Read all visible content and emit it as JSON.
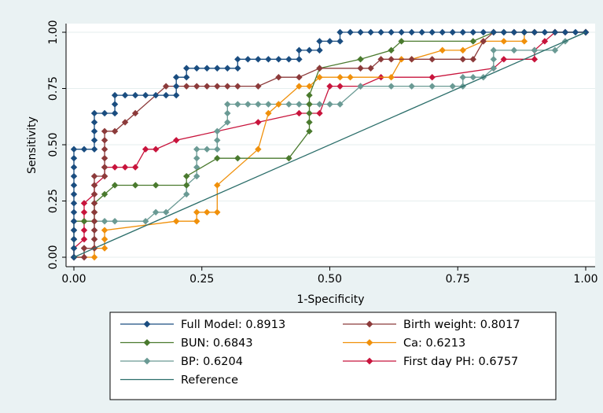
{
  "chart_data": {
    "type": "line",
    "title": "",
    "xlabel": "1-Specificity",
    "ylabel": "Sensitivity",
    "xlim": [
      0,
      1
    ],
    "ylim": [
      0,
      1
    ],
    "x_ticks": [
      "0.00",
      "0.25",
      "0.50",
      "0.75",
      "1.00"
    ],
    "y_ticks": [
      "0.00",
      "0.25",
      "0.50",
      "0.75",
      "1.00"
    ],
    "grid": true,
    "legend_position": "bottom",
    "series": [
      {
        "name": "Full Model: 0.8913",
        "color": "#1a4d80",
        "marker": "diamond",
        "points": [
          [
            0,
            0
          ],
          [
            0,
            0.04
          ],
          [
            0,
            0.08
          ],
          [
            0,
            0.12
          ],
          [
            0,
            0.16
          ],
          [
            0,
            0.2
          ],
          [
            0,
            0.24
          ],
          [
            0,
            0.28
          ],
          [
            0,
            0.32
          ],
          [
            0,
            0.36
          ],
          [
            0,
            0.4
          ],
          [
            0,
            0.44
          ],
          [
            0,
            0.48
          ],
          [
            0.02,
            0.48
          ],
          [
            0.04,
            0.48
          ],
          [
            0.04,
            0.52
          ],
          [
            0.04,
            0.56
          ],
          [
            0.04,
            0.6
          ],
          [
            0.04,
            0.64
          ],
          [
            0.06,
            0.64
          ],
          [
            0.08,
            0.64
          ],
          [
            0.08,
            0.68
          ],
          [
            0.08,
            0.72
          ],
          [
            0.1,
            0.72
          ],
          [
            0.12,
            0.72
          ],
          [
            0.14,
            0.72
          ],
          [
            0.16,
            0.72
          ],
          [
            0.18,
            0.72
          ],
          [
            0.2,
            0.72
          ],
          [
            0.2,
            0.76
          ],
          [
            0.2,
            0.8
          ],
          [
            0.22,
            0.8
          ],
          [
            0.22,
            0.84
          ],
          [
            0.24,
            0.84
          ],
          [
            0.26,
            0.84
          ],
          [
            0.28,
            0.84
          ],
          [
            0.3,
            0.84
          ],
          [
            0.32,
            0.84
          ],
          [
            0.32,
            0.88
          ],
          [
            0.34,
            0.88
          ],
          [
            0.36,
            0.88
          ],
          [
            0.38,
            0.88
          ],
          [
            0.4,
            0.88
          ],
          [
            0.42,
            0.88
          ],
          [
            0.44,
            0.88
          ],
          [
            0.44,
            0.92
          ],
          [
            0.46,
            0.92
          ],
          [
            0.48,
            0.92
          ],
          [
            0.48,
            0.96
          ],
          [
            0.5,
            0.96
          ],
          [
            0.52,
            0.96
          ],
          [
            0.52,
            1
          ],
          [
            0.54,
            1
          ],
          [
            0.56,
            1
          ],
          [
            0.58,
            1
          ],
          [
            0.6,
            1
          ],
          [
            0.62,
            1
          ],
          [
            0.64,
            1
          ],
          [
            0.66,
            1
          ],
          [
            0.68,
            1
          ],
          [
            0.7,
            1
          ],
          [
            0.72,
            1
          ],
          [
            0.74,
            1
          ],
          [
            0.76,
            1
          ],
          [
            0.78,
            1
          ],
          [
            0.8,
            1
          ],
          [
            0.82,
            1
          ],
          [
            0.84,
            1
          ],
          [
            0.86,
            1
          ],
          [
            0.88,
            1
          ],
          [
            0.9,
            1
          ],
          [
            0.92,
            1
          ],
          [
            0.94,
            1
          ],
          [
            0.96,
            1
          ],
          [
            0.98,
            1
          ],
          [
            1,
            1
          ]
        ]
      },
      {
        "name": "Birth weight: 0.8017",
        "color": "#8c3a3a",
        "marker": "diamond",
        "points": [
          [
            0,
            0
          ],
          [
            0.02,
            0
          ],
          [
            0.02,
            0.04
          ],
          [
            0.04,
            0.04
          ],
          [
            0.04,
            0.08
          ],
          [
            0.04,
            0.12
          ],
          [
            0.04,
            0.16
          ],
          [
            0.04,
            0.2
          ],
          [
            0.04,
            0.24
          ],
          [
            0.04,
            0.28
          ],
          [
            0.04,
            0.32
          ],
          [
            0.04,
            0.36
          ],
          [
            0.06,
            0.36
          ],
          [
            0.06,
            0.4
          ],
          [
            0.06,
            0.44
          ],
          [
            0.06,
            0.48
          ],
          [
            0.06,
            0.52
          ],
          [
            0.06,
            0.56
          ],
          [
            0.08,
            0.56
          ],
          [
            0.1,
            0.6
          ],
          [
            0.12,
            0.64
          ],
          [
            0.18,
            0.76
          ],
          [
            0.22,
            0.76
          ],
          [
            0.24,
            0.76
          ],
          [
            0.26,
            0.76
          ],
          [
            0.28,
            0.76
          ],
          [
            0.3,
            0.76
          ],
          [
            0.32,
            0.76
          ],
          [
            0.36,
            0.76
          ],
          [
            0.4,
            0.8
          ],
          [
            0.44,
            0.8
          ],
          [
            0.48,
            0.84
          ],
          [
            0.56,
            0.84
          ],
          [
            0.58,
            0.84
          ],
          [
            0.6,
            0.88
          ],
          [
            0.62,
            0.88
          ],
          [
            0.66,
            0.88
          ],
          [
            0.7,
            0.88
          ],
          [
            0.76,
            0.88
          ],
          [
            0.78,
            0.88
          ],
          [
            0.8,
            0.96
          ],
          [
            0.82,
            1
          ],
          [
            0.86,
            1
          ],
          [
            0.9,
            1
          ],
          [
            0.94,
            1
          ],
          [
            1,
            1
          ]
        ]
      },
      {
        "name": "BUN: 0.6843",
        "color": "#4a7a2e",
        "marker": "diamond",
        "points": [
          [
            0,
            0
          ],
          [
            0,
            0.04
          ],
          [
            0,
            0.08
          ],
          [
            0,
            0.12
          ],
          [
            0,
            0.16
          ],
          [
            0.02,
            0.16
          ],
          [
            0.04,
            0.16
          ],
          [
            0.04,
            0.2
          ],
          [
            0.04,
            0.24
          ],
          [
            0.06,
            0.28
          ],
          [
            0.08,
            0.32
          ],
          [
            0.12,
            0.32
          ],
          [
            0.16,
            0.32
          ],
          [
            0.22,
            0.32
          ],
          [
            0.22,
            0.36
          ],
          [
            0.28,
            0.44
          ],
          [
            0.32,
            0.44
          ],
          [
            0.42,
            0.44
          ],
          [
            0.46,
            0.56
          ],
          [
            0.46,
            0.6
          ],
          [
            0.46,
            0.64
          ],
          [
            0.46,
            0.68
          ],
          [
            0.46,
            0.72
          ],
          [
            0.48,
            0.84
          ],
          [
            0.56,
            0.88
          ],
          [
            0.62,
            0.92
          ],
          [
            0.64,
            0.96
          ],
          [
            0.78,
            0.96
          ],
          [
            0.82,
            1
          ],
          [
            0.84,
            1
          ],
          [
            0.88,
            1
          ],
          [
            1,
            1
          ]
        ]
      },
      {
        "name": "Ca: 0.6213",
        "color": "#f0900a",
        "marker": "diamond",
        "points": [
          [
            0,
            0
          ],
          [
            0.04,
            0
          ],
          [
            0.04,
            0.04
          ],
          [
            0.06,
            0.04
          ],
          [
            0.06,
            0.08
          ],
          [
            0.06,
            0.12
          ],
          [
            0.2,
            0.16
          ],
          [
            0.24,
            0.16
          ],
          [
            0.24,
            0.2
          ],
          [
            0.26,
            0.2
          ],
          [
            0.28,
            0.2
          ],
          [
            0.28,
            0.32
          ],
          [
            0.36,
            0.48
          ],
          [
            0.38,
            0.64
          ],
          [
            0.4,
            0.68
          ],
          [
            0.44,
            0.76
          ],
          [
            0.46,
            0.76
          ],
          [
            0.48,
            0.8
          ],
          [
            0.52,
            0.8
          ],
          [
            0.54,
            0.8
          ],
          [
            0.62,
            0.8
          ],
          [
            0.64,
            0.88
          ],
          [
            0.66,
            0.88
          ],
          [
            0.72,
            0.92
          ],
          [
            0.76,
            0.92
          ],
          [
            0.8,
            0.96
          ],
          [
            0.84,
            0.96
          ],
          [
            0.88,
            0.96
          ],
          [
            0.88,
            1
          ],
          [
            0.9,
            1
          ],
          [
            0.94,
            1
          ],
          [
            1,
            1
          ]
        ]
      },
      {
        "name": "BP: 0.6204",
        "color": "#6a9a94",
        "marker": "diamond",
        "points": [
          [
            0,
            0
          ],
          [
            0.02,
            0
          ],
          [
            0.02,
            0.04
          ],
          [
            0.04,
            0.04
          ],
          [
            0.04,
            0.08
          ],
          [
            0.04,
            0.12
          ],
          [
            0.04,
            0.16
          ],
          [
            0.06,
            0.16
          ],
          [
            0.08,
            0.16
          ],
          [
            0.14,
            0.16
          ],
          [
            0.16,
            0.2
          ],
          [
            0.18,
            0.2
          ],
          [
            0.22,
            0.28
          ],
          [
            0.22,
            0.32
          ],
          [
            0.24,
            0.36
          ],
          [
            0.24,
            0.4
          ],
          [
            0.24,
            0.44
          ],
          [
            0.24,
            0.48
          ],
          [
            0.26,
            0.48
          ],
          [
            0.28,
            0.48
          ],
          [
            0.28,
            0.52
          ],
          [
            0.28,
            0.56
          ],
          [
            0.3,
            0.6
          ],
          [
            0.3,
            0.64
          ],
          [
            0.3,
            0.68
          ],
          [
            0.32,
            0.68
          ],
          [
            0.34,
            0.68
          ],
          [
            0.36,
            0.68
          ],
          [
            0.38,
            0.68
          ],
          [
            0.4,
            0.68
          ],
          [
            0.42,
            0.68
          ],
          [
            0.44,
            0.68
          ],
          [
            0.46,
            0.68
          ],
          [
            0.48,
            0.68
          ],
          [
            0.5,
            0.68
          ],
          [
            0.52,
            0.68
          ],
          [
            0.56,
            0.76
          ],
          [
            0.62,
            0.76
          ],
          [
            0.66,
            0.76
          ],
          [
            0.7,
            0.76
          ],
          [
            0.74,
            0.76
          ],
          [
            0.76,
            0.76
          ],
          [
            0.76,
            0.8
          ],
          [
            0.78,
            0.8
          ],
          [
            0.8,
            0.8
          ],
          [
            0.82,
            0.84
          ],
          [
            0.82,
            0.88
          ],
          [
            0.82,
            0.92
          ],
          [
            0.86,
            0.92
          ],
          [
            0.9,
            0.92
          ],
          [
            0.94,
            0.92
          ],
          [
            0.96,
            0.96
          ],
          [
            1,
            1
          ]
        ]
      },
      {
        "name": "First day PH: 0.6757",
        "color": "#c8143c",
        "marker": "diamond",
        "points": [
          [
            0,
            0
          ],
          [
            0,
            0.04
          ],
          [
            0.02,
            0.08
          ],
          [
            0.02,
            0.12
          ],
          [
            0.02,
            0.16
          ],
          [
            0.02,
            0.2
          ],
          [
            0.02,
            0.24
          ],
          [
            0.04,
            0.28
          ],
          [
            0.04,
            0.32
          ],
          [
            0.06,
            0.36
          ],
          [
            0.06,
            0.4
          ],
          [
            0.08,
            0.4
          ],
          [
            0.1,
            0.4
          ],
          [
            0.12,
            0.4
          ],
          [
            0.14,
            0.48
          ],
          [
            0.16,
            0.48
          ],
          [
            0.2,
            0.52
          ],
          [
            0.36,
            0.6
          ],
          [
            0.44,
            0.64
          ],
          [
            0.48,
            0.64
          ],
          [
            0.5,
            0.76
          ],
          [
            0.52,
            0.76
          ],
          [
            0.56,
            0.76
          ],
          [
            0.6,
            0.8
          ],
          [
            0.7,
            0.8
          ],
          [
            0.82,
            0.84
          ],
          [
            0.84,
            0.88
          ],
          [
            0.9,
            0.88
          ],
          [
            0.9,
            0.92
          ],
          [
            0.92,
            0.96
          ],
          [
            0.94,
            1
          ],
          [
            0.96,
            1
          ],
          [
            1,
            1
          ]
        ]
      },
      {
        "name": "Reference",
        "color": "#2b6e6a",
        "marker": "none",
        "points": [
          [
            0,
            0
          ],
          [
            1,
            1
          ]
        ]
      }
    ]
  }
}
